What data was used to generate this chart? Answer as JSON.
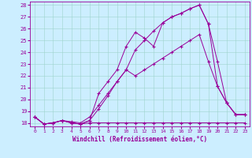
{
  "xlabel": "Windchill (Refroidissement éolien,°C)",
  "bg_color": "#cceeff",
  "line_color": "#990099",
  "xlim": [
    -0.5,
    23.5
  ],
  "ylim": [
    17.7,
    28.3
  ],
  "xticks": [
    0,
    1,
    2,
    3,
    4,
    5,
    6,
    7,
    8,
    9,
    10,
    11,
    12,
    13,
    14,
    15,
    16,
    17,
    18,
    19,
    20,
    21,
    22,
    23
  ],
  "yticks": [
    18,
    19,
    20,
    21,
    22,
    23,
    24,
    25,
    26,
    27,
    28
  ],
  "lines": [
    [
      0,
      1,
      2,
      3,
      4,
      5,
      6,
      7,
      8,
      9,
      10,
      11,
      12,
      13,
      14,
      15,
      16,
      17,
      18,
      19,
      20,
      21,
      22,
      23
    ],
    [
      [
        18.5,
        17.9,
        18.0,
        18.2,
        18.0,
        17.9,
        18.0,
        18.0,
        18.0,
        18.0,
        18.0,
        18.0,
        18.0,
        18.0,
        18.0,
        18.0,
        18.0,
        18.0,
        18.0,
        18.0,
        18.0,
        18.0,
        18.0,
        18.0
      ],
      [
        18.5,
        17.9,
        18.0,
        18.2,
        18.0,
        17.9,
        18.2,
        19.2,
        20.3,
        21.5,
        22.5,
        24.2,
        25.0,
        25.8,
        26.5,
        27.0,
        27.3,
        27.7,
        28.0,
        26.4,
        23.2,
        19.7,
        18.7,
        18.7
      ],
      [
        18.5,
        17.9,
        18.0,
        18.2,
        18.0,
        17.9,
        18.2,
        20.5,
        21.5,
        22.5,
        24.5,
        25.7,
        25.2,
        24.5,
        26.5,
        27.0,
        27.3,
        27.7,
        28.0,
        26.4,
        21.1,
        19.7,
        18.7,
        18.7
      ],
      [
        18.5,
        17.9,
        18.0,
        18.2,
        18.1,
        18.0,
        18.5,
        19.5,
        20.5,
        21.5,
        22.5,
        22.0,
        22.5,
        23.0,
        23.5,
        24.0,
        24.5,
        25.0,
        25.5,
        23.2,
        21.1,
        19.7,
        18.7,
        18.7
      ]
    ]
  ]
}
